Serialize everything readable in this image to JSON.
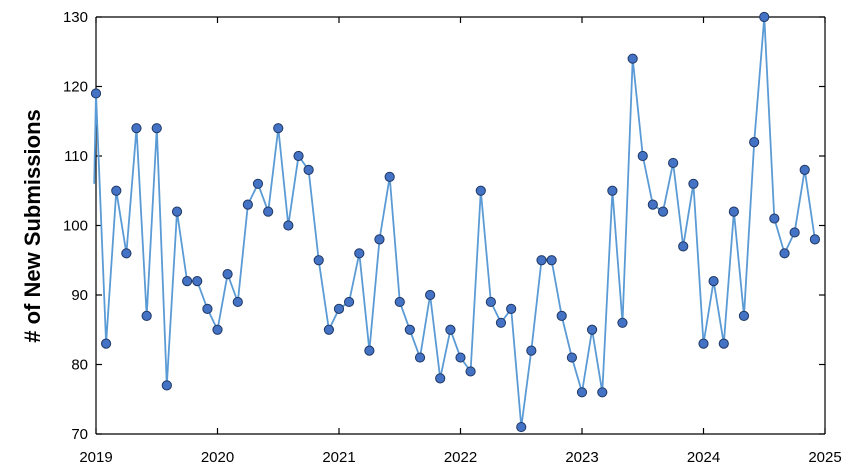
{
  "chart_data": {
    "type": "line",
    "title": "",
    "xlabel": "",
    "ylabel": "# of New Submissions",
    "xlim": [
      2019,
      2025
    ],
    "ylim": [
      70,
      130
    ],
    "x_ticks": [
      "2019",
      "2020",
      "2021",
      "2022",
      "2023",
      "2024",
      "2025"
    ],
    "y_ticks": [
      "70",
      "80",
      "90",
      "100",
      "110",
      "120",
      "130"
    ],
    "grid": false,
    "legend": "none",
    "markers": true,
    "colors": {
      "line": "#5b9bd5",
      "marker_fill": "#4472c4",
      "marker_edge": "#1f3864",
      "axis": "#000000"
    },
    "series": [
      {
        "x": [
          2019.0,
          2019.083,
          2019.167,
          2019.25,
          2019.333,
          2019.417,
          2019.5,
          2019.583,
          2019.667,
          2019.75,
          2019.833,
          2019.917,
          2020.0,
          2020.083,
          2020.167,
          2020.25,
          2020.333,
          2020.417,
          2020.5,
          2020.583,
          2020.667,
          2020.75,
          2020.833,
          2020.917,
          2021.0,
          2021.083,
          2021.167,
          2021.25,
          2021.333,
          2021.417,
          2021.5,
          2021.583,
          2021.667,
          2021.75,
          2021.833,
          2021.917,
          2022.0,
          2022.083,
          2022.167,
          2022.25,
          2022.333,
          2022.417,
          2022.5,
          2022.583,
          2022.667,
          2022.75,
          2022.833,
          2022.917,
          2023.0,
          2023.083,
          2023.167,
          2023.25,
          2023.333,
          2023.417,
          2023.5,
          2023.583,
          2023.667,
          2023.75,
          2023.833,
          2023.917,
          2024.0,
          2024.083,
          2024.167,
          2024.25,
          2024.333,
          2024.417,
          2024.5,
          2024.583,
          2024.667,
          2024.75,
          2024.833,
          2024.917
        ],
        "y": [
          119,
          83,
          105,
          96,
          114,
          87,
          114,
          77,
          102,
          92,
          92,
          88,
          85,
          93,
          89,
          103,
          106,
          102,
          114,
          100,
          110,
          108,
          95,
          85,
          88,
          89,
          96,
          82,
          98,
          107,
          89,
          85,
          81,
          90,
          78,
          85,
          81,
          79,
          105,
          89,
          86,
          88,
          71,
          82,
          95,
          95,
          87,
          81,
          76,
          85,
          76,
          105,
          86,
          124,
          110,
          103,
          102,
          109,
          97,
          106,
          83,
          92,
          83,
          102,
          87,
          112,
          130,
          101,
          96,
          99,
          108,
          98
        ],
        "line_start": {
          "x": 2018.985,
          "y": 106
        }
      }
    ]
  }
}
